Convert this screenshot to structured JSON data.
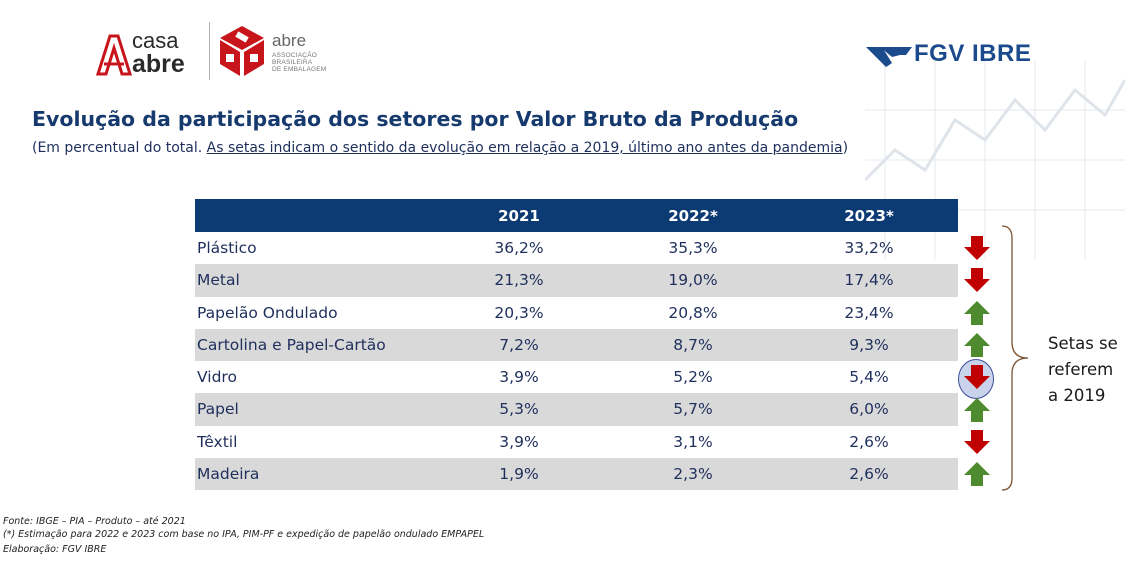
{
  "logos": {
    "casa_abre_line1": "casa",
    "casa_abre_line2": "abre",
    "abre_word": "abre",
    "abre_sub_line1": "ASSOCIAÇÃO",
    "abre_sub_line2": "BRASILEIRA",
    "abre_sub_line3": "DE EMBALAGEM",
    "fgv": "FGV IBRE"
  },
  "title": "Evolução da participação dos setores por Valor Bruto da Produção",
  "subtitle_prefix": "(Em percentual do total. ",
  "subtitle_underlined": "As setas indicam o sentido da evolução em relação a 2019, último ano antes da pandemia",
  "subtitle_suffix": ")",
  "table": {
    "headers": [
      "2021",
      "2022*",
      "2023*"
    ],
    "rows": [
      {
        "name": "Plástico",
        "v2021": "36,2%",
        "v2022": "35,3%",
        "v2023": "33,2%",
        "trend": "down"
      },
      {
        "name": "Metal",
        "v2021": "21,3%",
        "v2022": "19,0%",
        "v2023": "17,4%",
        "trend": "down"
      },
      {
        "name": "Papelão Ondulado",
        "v2021": "20,3%",
        "v2022": "20,8%",
        "v2023": "23,4%",
        "trend": "up"
      },
      {
        "name": "Cartolina e Papel-Cartão",
        "v2021": "7,2%",
        "v2022": "8,7%",
        "v2023": "9,3%",
        "trend": "up"
      },
      {
        "name": "Vidro",
        "v2021": "3,9%",
        "v2022": "5,2%",
        "v2023": "5,4%",
        "trend": "down"
      },
      {
        "name": "Papel",
        "v2021": "5,3%",
        "v2022": "5,7%",
        "v2023": "6,0%",
        "trend": "up"
      },
      {
        "name": "Têxtil",
        "v2021": "3,9%",
        "v2022": "3,1%",
        "v2023": "2,6%",
        "trend": "down"
      },
      {
        "name": "Madeira",
        "v2021": "1,9%",
        "v2022": "2,3%",
        "v2023": "2,6%",
        "trend": "up"
      }
    ]
  },
  "note": "Setas se\nreferem\na 2019",
  "footer": {
    "source": "Fonte: IBGE – PIA – Produto – até 2021",
    "estimate": "(*) Estimação para 2022 e 2023 com base no IPA, PIM-PF e expedição de papelão ondulado EMPAPEL",
    "elaboration": "Elaboração: FGV IBRE"
  },
  "colors": {
    "header_bg": "#0c3a73",
    "row_alt": "#d9d9d9",
    "arrow_down": "#c00000",
    "arrow_up": "#4e8a2e",
    "title": "#173a6e"
  },
  "icons": {
    "down": "arrow-down-icon",
    "up": "arrow-up-icon"
  }
}
